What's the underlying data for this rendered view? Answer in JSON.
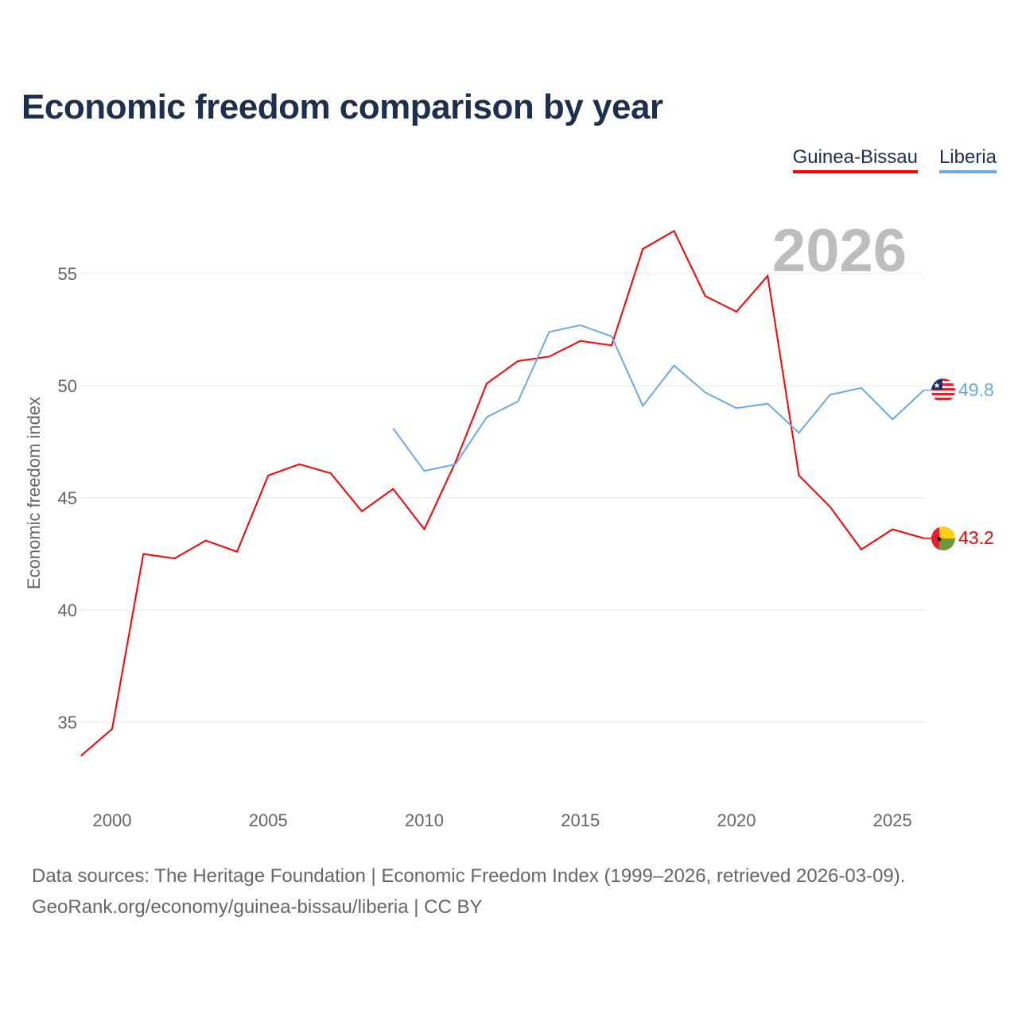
{
  "chart_data": {
    "type": "line",
    "title": "Economic freedom comparison by year",
    "xlabel": "",
    "ylabel": "Economic freedom index",
    "xlim": [
      1999,
      2026
    ],
    "ylim": [
      32.6,
      57.8
    ],
    "x_ticks": [
      "2000",
      "2005",
      "2010",
      "2015",
      "2020",
      "2025"
    ],
    "y_ticks": [
      "35",
      "40",
      "45",
      "50",
      "55"
    ],
    "grid": true,
    "legend_position": "top-right",
    "year_watermark": "2026",
    "series": [
      {
        "name": "Guinea-Bissau",
        "color": "#ff0000",
        "end_label": "43.2",
        "x": [
          1999,
          2000,
          2001,
          2002,
          2003,
          2004,
          2005,
          2006,
          2007,
          2008,
          2009,
          2010,
          2011,
          2012,
          2013,
          2014,
          2015,
          2016,
          2017,
          2018,
          2019,
          2020,
          2021,
          2022,
          2023,
          2024,
          2025,
          2026
        ],
        "values": [
          33.5,
          34.7,
          42.5,
          42.3,
          43.1,
          42.6,
          46.0,
          46.5,
          46.1,
          44.4,
          45.4,
          43.6,
          46.6,
          50.1,
          51.1,
          51.3,
          52.0,
          51.8,
          56.1,
          56.9,
          54.0,
          53.3,
          54.9,
          46.0,
          44.6,
          42.7,
          43.6,
          43.2
        ]
      },
      {
        "name": "Liberia",
        "color": "#6aaae8",
        "end_label": "49.8",
        "x": [
          2009,
          2010,
          2011,
          2012,
          2013,
          2014,
          2015,
          2016,
          2017,
          2018,
          2019,
          2020,
          2021,
          2022,
          2023,
          2024,
          2025,
          2026
        ],
        "values": [
          48.1,
          46.2,
          46.5,
          48.6,
          49.3,
          52.4,
          52.7,
          52.2,
          49.1,
          50.9,
          49.7,
          49.0,
          49.2,
          47.9,
          49.6,
          49.9,
          48.5,
          49.8
        ]
      }
    ]
  },
  "footer": {
    "line1": "Data sources: The Heritage Foundation | Economic Freedom Index (1999–2026, retrieved 2026-03-09).",
    "line2": "GeoRank.org/economy/guinea-bissau/liberia | CC BY"
  }
}
